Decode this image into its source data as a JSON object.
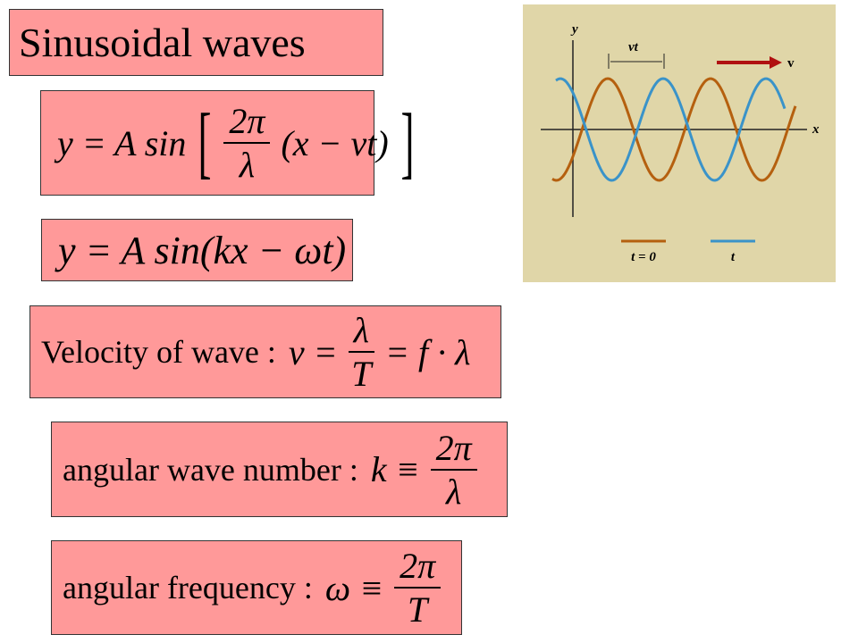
{
  "title": "Sinusoidal waves",
  "formulas": [
    {
      "lead": "y = A sin",
      "numerator": "2π",
      "denominator": "λ",
      "trail": "(x − vt)"
    },
    {
      "lead": "y = A sin(kx − ωt)"
    },
    {
      "label": "Velocity of wave :",
      "lead": "v =",
      "numerator": "λ",
      "denominator": "T",
      "trail": "= f · λ"
    },
    {
      "label": "angular wave number :",
      "lead": "k ≡",
      "numerator": "2π",
      "denominator": "λ"
    },
    {
      "label": "angular frequency :",
      "lead": "ω ≡",
      "numerator": "2π",
      "denominator": "T"
    }
  ],
  "figure": {
    "y_axis": "y",
    "x_axis": "x",
    "shift_label": "vt",
    "velocity_label": "v",
    "legend": [
      "t = 0",
      "t"
    ]
  }
}
